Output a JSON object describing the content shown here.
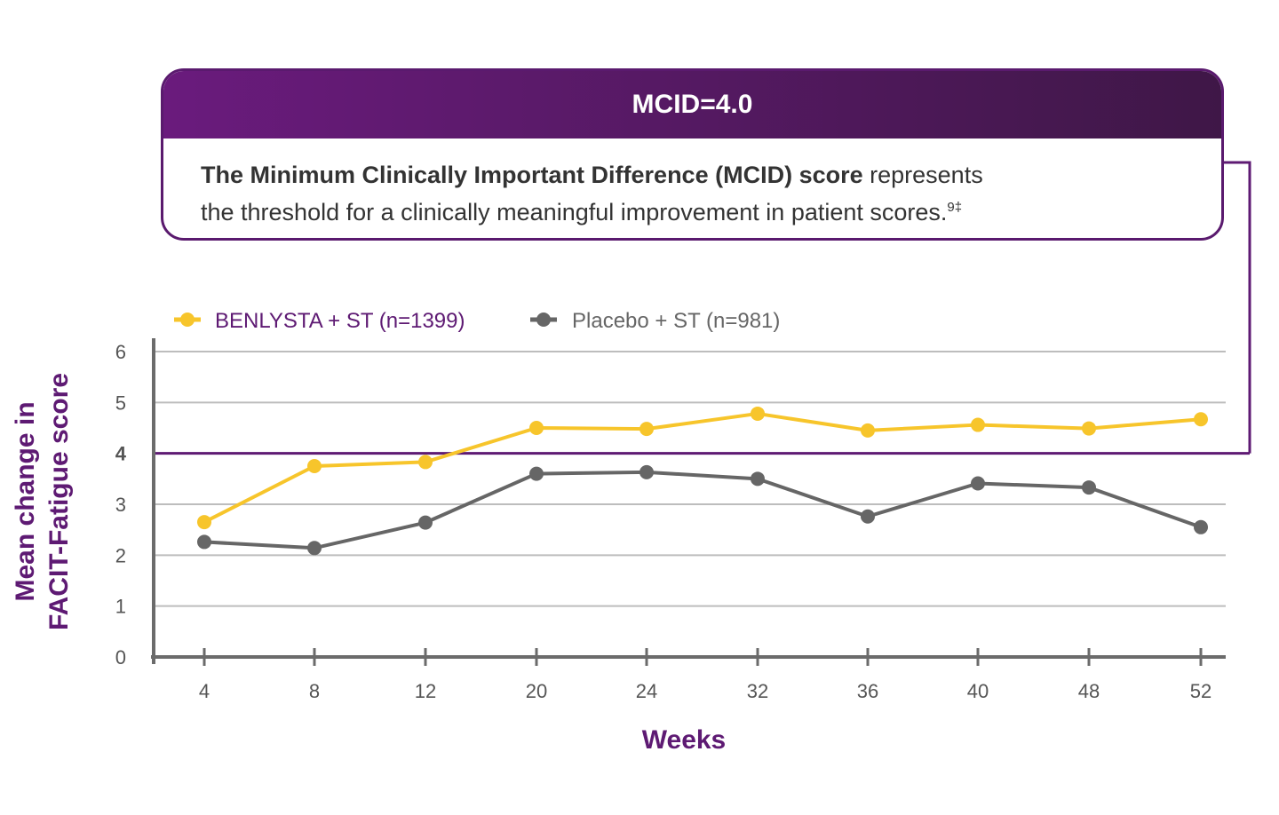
{
  "mcid": {
    "title": "MCID=4.0",
    "bold_text": "The Minimum Clinically Important Difference (MCID) score",
    "text1": " represents",
    "text2": "the threshold for a clinically meaningful improvement in patient scores.",
    "superscript": "9‡"
  },
  "chart_data": {
    "type": "line",
    "categories": [
      "4",
      "8",
      "12",
      "20",
      "24",
      "32",
      "36",
      "40",
      "48",
      "52"
    ],
    "series": [
      {
        "name": "BENLYSTA + ST (n=1399)",
        "color": "#f7c52b",
        "values": [
          2.65,
          3.75,
          3.83,
          4.5,
          4.48,
          4.78,
          4.45,
          4.56,
          4.49,
          4.67
        ]
      },
      {
        "name": "Placebo + ST (n=981)",
        "color": "#666666",
        "values": [
          2.26,
          2.14,
          2.64,
          3.6,
          3.63,
          3.5,
          2.76,
          3.41,
          3.33,
          2.55
        ]
      }
    ],
    "ylim": [
      0,
      6
    ],
    "yticks": [
      "0",
      "1",
      "2",
      "3",
      "4",
      "5",
      "6"
    ],
    "threshold": {
      "value": 4,
      "color": "#5e1a73"
    },
    "xlabel": "Weeks",
    "ylabel_line1": "Mean change in",
    "ylabel_line2": "FACIT-Fatigue score",
    "grid": true,
    "legend": "top-left"
  }
}
